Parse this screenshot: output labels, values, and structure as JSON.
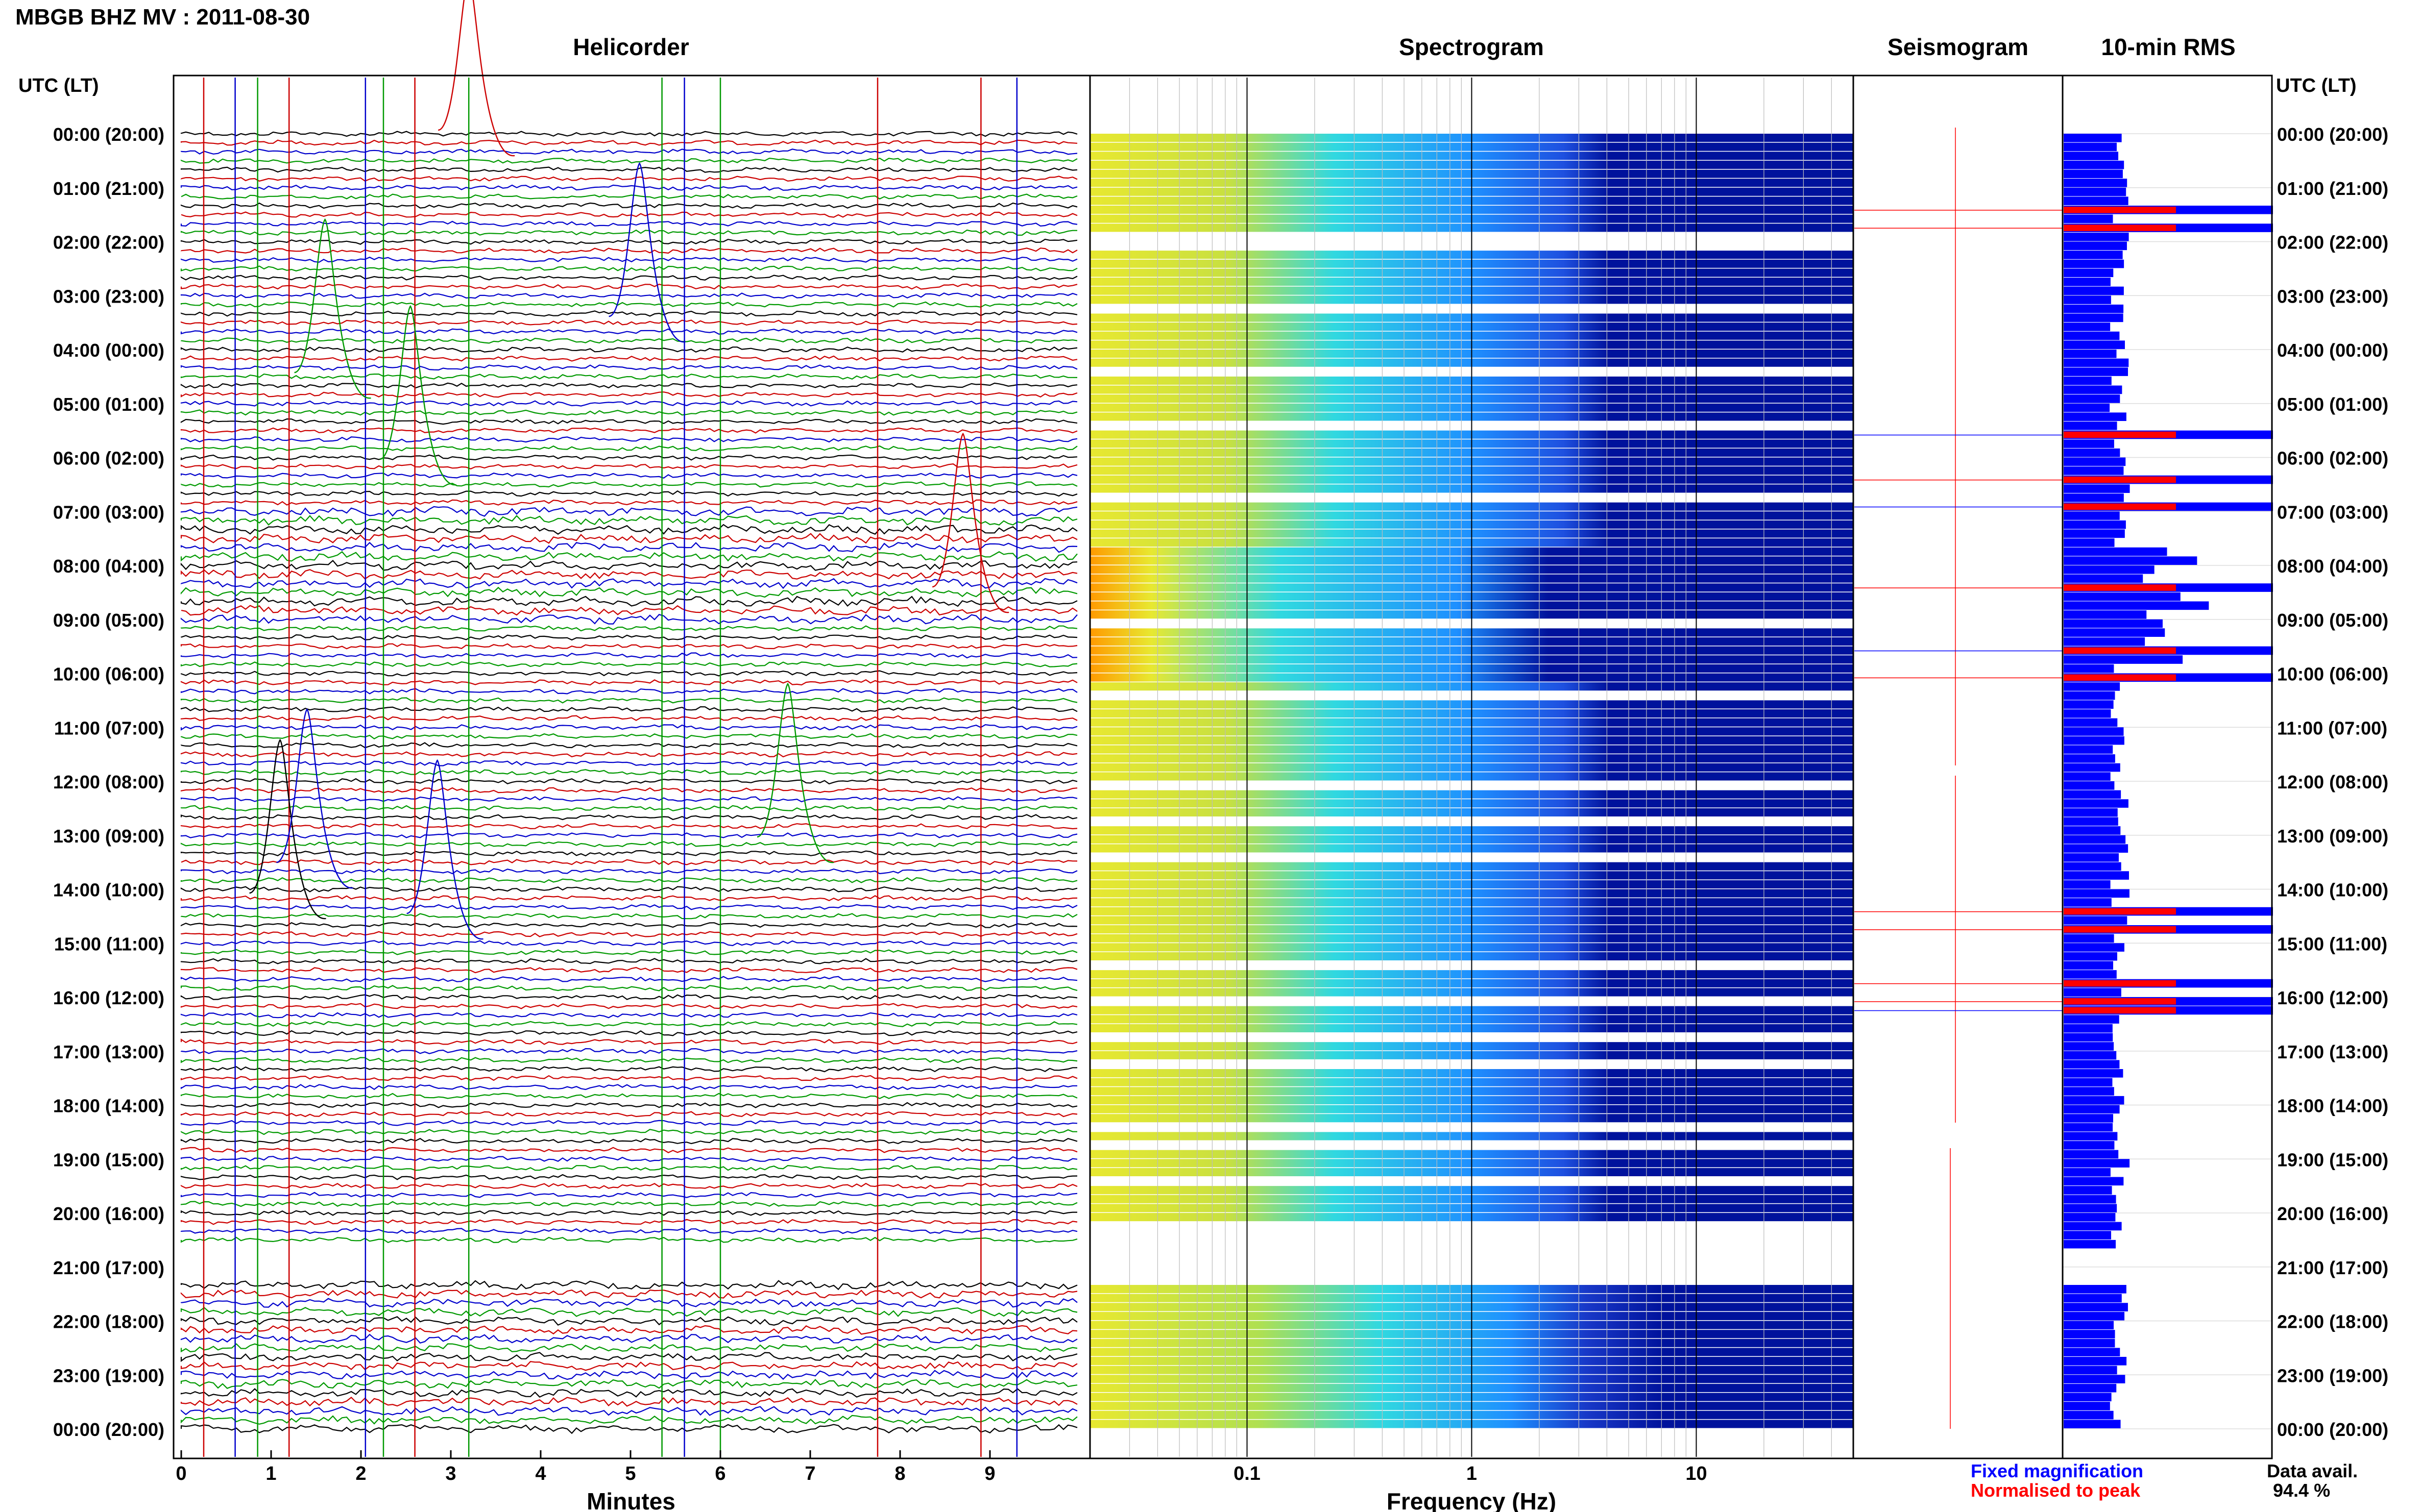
{
  "header": {
    "title": "MBGB BHZ MV : 2011-08-30"
  },
  "panels": {
    "helicorder": "Helicorder",
    "spectrogram": "Spectrogram",
    "seismogram": "Seismogram",
    "rms": "10-min RMS"
  },
  "axes": {
    "left_label": "UTC (LT)",
    "right_label": "UTC (LT)",
    "minutes_label": "Minutes",
    "frequency_label": "Frequency (Hz)"
  },
  "legend": {
    "fixed": "Fixed magnification",
    "normalised": "Normalised to peak",
    "data_avail_label": "Data avail.",
    "data_avail_value": "94.4 %"
  },
  "colors": {
    "blue": "#0000ff",
    "red": "#ff0000",
    "trace_black": "#000000",
    "trace_red": "#cc0000",
    "trace_green": "#009900",
    "trace_blue": "#0000cc",
    "spec_dark": "#00129c",
    "spec_mid": "#1e90ff",
    "spec_cyan": "#30d8e0",
    "spec_yellow": "#e8e830",
    "spec_orange": "#ff9a00"
  },
  "chart_data": [
    {
      "type": "line",
      "name": "helicorder",
      "x_ticks": [
        "0",
        "1",
        "2",
        "3",
        "4",
        "5",
        "6",
        "7",
        "8",
        "9"
      ],
      "xlim": [
        0,
        10
      ],
      "xlabel": "Minutes",
      "hour_labels": [
        "00:00 (20:00)",
        "01:00 (21:00)",
        "02:00 (22:00)",
        "03:00 (23:00)",
        "04:00 (00:00)",
        "05:00 (01:00)",
        "06:00 (02:00)",
        "07:00 (03:00)",
        "08:00 (04:00)",
        "09:00 (05:00)",
        "10:00 (06:00)",
        "11:00 (07:00)",
        "12:00 (08:00)",
        "13:00 (09:00)",
        "14:00 (10:00)",
        "15:00 (11:00)",
        "16:00 (12:00)",
        "17:00 (13:00)",
        "18:00 (14:00)",
        "19:00 (15:00)",
        "20:00 (16:00)",
        "21:00 (17:00)",
        "22:00 (18:00)",
        "23:00 (19:00)",
        "00:00 (20:00)"
      ],
      "lines_per_hour": 6,
      "trace_colors_cycle": [
        "trace_black",
        "trace_red",
        "trace_blue",
        "trace_green"
      ]
    },
    {
      "type": "heatmap",
      "name": "spectrogram",
      "x_scale": "log",
      "xlim": [
        0.02,
        50
      ],
      "x_ticks": [
        "0.1",
        "1",
        "10"
      ],
      "xlabel": "Frequency (Hz)"
    },
    {
      "type": "bar",
      "name": "10-min RMS",
      "orientation": "horizontal",
      "n_rows": 144,
      "series": [
        {
          "name": "Fixed magnification",
          "color": "#0000ff"
        },
        {
          "name": "Normalised to peak",
          "color": "#ff0000"
        }
      ],
      "peak_rows": [
        8,
        10,
        33,
        38,
        41,
        50,
        57,
        60,
        86,
        88,
        94,
        96,
        97
      ]
    }
  ]
}
